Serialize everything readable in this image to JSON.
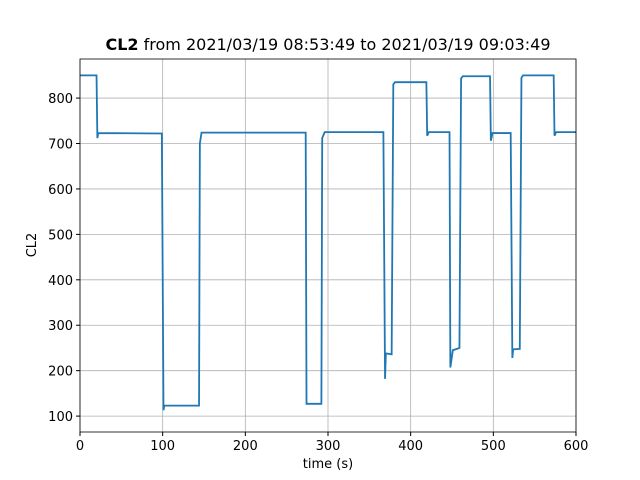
{
  "chart_data": {
    "type": "line",
    "title_parts": [
      {
        "text": "CL2",
        "bold": true
      },
      {
        "text": "from 2021/03/19 08:53:49 to 2021/03/19 09:03:49",
        "bold": false
      }
    ],
    "xlabel": "time (s)",
    "ylabel": "CL2",
    "x": [
      0,
      20,
      21,
      22,
      99,
      101,
      102,
      144,
      145,
      147,
      273,
      274,
      292,
      293,
      296,
      367,
      369,
      370,
      377,
      379,
      381,
      419,
      420,
      422,
      447,
      448,
      451,
      459,
      461,
      463,
      496,
      497,
      499,
      521,
      523,
      524,
      532,
      534,
      536,
      573,
      574,
      576,
      600
    ],
    "series": [
      {
        "name": "CL2",
        "color": "#1f77b4",
        "values": [
          850,
          850,
          712,
          723,
          722,
          113,
          123,
          123,
          700,
          724,
          724,
          127,
          127,
          712,
          725,
          725,
          182,
          238,
          236,
          830,
          835,
          835,
          717,
          725,
          725,
          207,
          245,
          250,
          843,
          848,
          848,
          706,
          723,
          723,
          228,
          247,
          248,
          845,
          850,
          850,
          717,
          725,
          725
        ]
      }
    ],
    "xlim": [
      0,
      600
    ],
    "ylim": [
      65,
      886
    ],
    "xticks": [
      0,
      100,
      200,
      300,
      400,
      500,
      600
    ],
    "yticks": [
      100,
      200,
      300,
      400,
      500,
      600,
      700,
      800
    ],
    "grid": true
  }
}
